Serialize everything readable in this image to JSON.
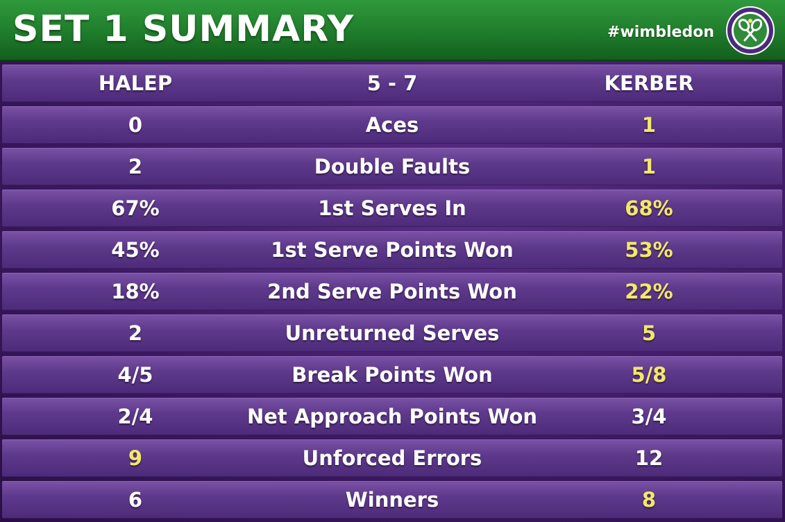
{
  "header": {
    "title": "SET 1 SUMMARY",
    "hashtag": "#wimbledon",
    "logo_icon": "wimbledon-logo-icon"
  },
  "colors": {
    "header_green": "#1f7c2b",
    "row_purple": "#5f3a8c",
    "highlight_yellow": "#f3e86a",
    "text_white": "#ffffff"
  },
  "players": {
    "left": "HALEP",
    "score": "5 - 7",
    "right": "KERBER"
  },
  "stats": [
    {
      "label": "Aces",
      "left": "0",
      "right": "1",
      "highlight": "right"
    },
    {
      "label": "Double Faults",
      "left": "2",
      "right": "1",
      "highlight": "right"
    },
    {
      "label": "1st Serves In",
      "left": "67%",
      "right": "68%",
      "highlight": "right"
    },
    {
      "label": "1st Serve Points Won",
      "left": "45%",
      "right": "53%",
      "highlight": "right"
    },
    {
      "label": "2nd Serve Points Won",
      "left": "18%",
      "right": "22%",
      "highlight": "right"
    },
    {
      "label": "Unreturned Serves",
      "left": "2",
      "right": "5",
      "highlight": "right"
    },
    {
      "label": "Break Points Won",
      "left": "4/5",
      "right": "5/8",
      "highlight": "right"
    },
    {
      "label": "Net Approach Points Won",
      "left": "2/4",
      "right": "3/4",
      "highlight": "none"
    },
    {
      "label": "Unforced Errors",
      "left": "9",
      "right": "12",
      "highlight": "left"
    },
    {
      "label": "Winners",
      "left": "6",
      "right": "8",
      "highlight": "right"
    }
  ]
}
